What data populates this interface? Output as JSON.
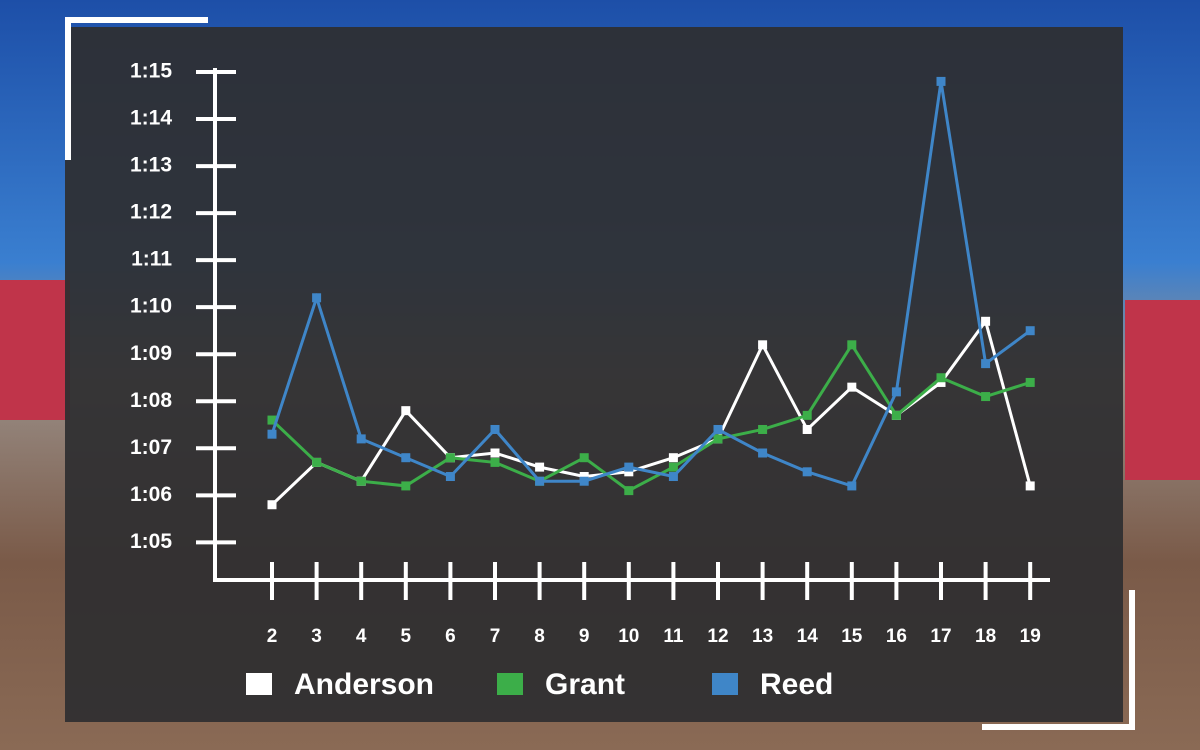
{
  "chart_data": {
    "type": "line",
    "categories": [
      "2",
      "3",
      "4",
      "5",
      "6",
      "7",
      "8",
      "9",
      "10",
      "11",
      "12",
      "13",
      "14",
      "15",
      "16",
      "17",
      "18",
      "19"
    ],
    "series": [
      {
        "name": "Anderson",
        "color": "#ffffff",
        "values": [
          65.8,
          66.7,
          66.3,
          67.8,
          66.8,
          66.9,
          66.6,
          66.4,
          66.5,
          66.8,
          67.2,
          69.2,
          67.4,
          68.3,
          67.7,
          68.4,
          69.7,
          66.2
        ]
      },
      {
        "name": "Grant",
        "color": "#3cae49",
        "values": [
          67.6,
          66.7,
          66.3,
          66.2,
          66.8,
          66.7,
          66.3,
          66.8,
          66.1,
          66.6,
          67.2,
          67.4,
          67.7,
          69.2,
          67.7,
          68.5,
          68.1,
          68.4
        ]
      },
      {
        "name": "Reed",
        "color": "#3f86c8",
        "values": [
          67.3,
          70.2,
          67.2,
          66.8,
          66.4,
          67.4,
          66.3,
          66.3,
          66.6,
          66.4,
          67.4,
          66.9,
          66.5,
          66.2,
          68.2,
          74.8,
          68.8,
          69.5
        ]
      }
    ],
    "ylim": [
      64.2,
      75
    ],
    "yticks": [
      {
        "value": 65,
        "label": "1:05"
      },
      {
        "value": 66,
        "label": "1:06"
      },
      {
        "value": 67,
        "label": "1:07"
      },
      {
        "value": 68,
        "label": "1:08"
      },
      {
        "value": 69,
        "label": "1:09"
      },
      {
        "value": 70,
        "label": "1:10"
      },
      {
        "value": 71,
        "label": "1:11"
      },
      {
        "value": 72,
        "label": "1:12"
      },
      {
        "value": 73,
        "label": "1:13"
      },
      {
        "value": 74,
        "label": "1:14"
      },
      {
        "value": 75,
        "label": "1:15"
      }
    ],
    "legend": "bottom"
  }
}
